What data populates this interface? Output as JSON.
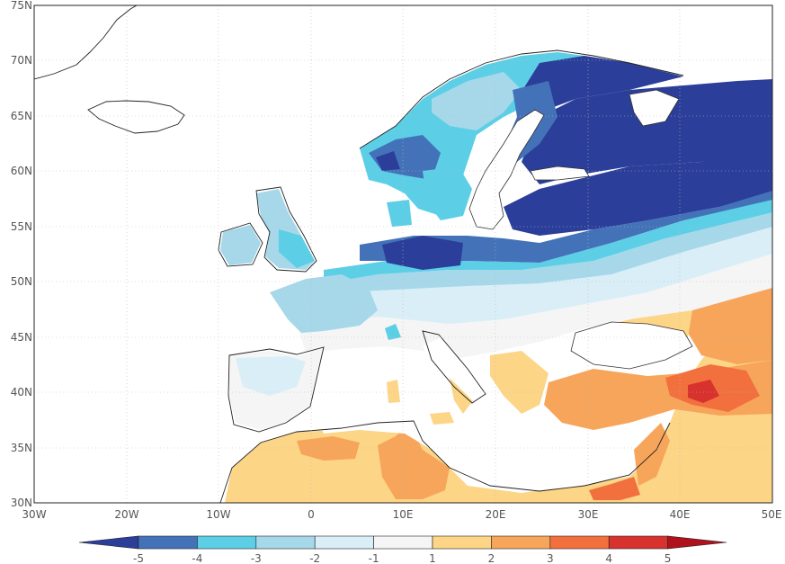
{
  "map": {
    "lat_labels": [
      "75N",
      "70N",
      "65N",
      "60N",
      "55N",
      "50N",
      "45N",
      "40N",
      "35N",
      "30N"
    ],
    "lon_labels": [
      "30W",
      "20W",
      "10W",
      "0",
      "10E",
      "20E",
      "30E",
      "40E",
      "50E"
    ],
    "extent": {
      "lon_min": -30,
      "lon_max": 50,
      "lat_min": 30,
      "lat_max": 75
    },
    "gridlines": true
  },
  "colorbar": {
    "labels": [
      "-5",
      "-4",
      "-3",
      "-2",
      "-1",
      "1",
      "2",
      "3",
      "4",
      "5"
    ],
    "colors": [
      "#2b3f9a",
      "#4472b8",
      "#5ccfe6",
      "#a6d8ea",
      "#d9eef6",
      "#f5f5f5",
      "#fcd586",
      "#f7a55a",
      "#f2703d",
      "#d7322e",
      "#b0131c"
    ],
    "extends": "both"
  },
  "chart_data": {
    "type": "heatmap",
    "title": "",
    "region": "Europe / Mediterranean",
    "value_bins": [
      -5,
      -4,
      -3,
      -2,
      -1,
      1,
      2,
      3,
      4,
      5
    ],
    "regions": [
      {
        "name": "Russia / Baltic / Belarus",
        "value": -5
      },
      {
        "name": "Northern Poland / Germany",
        "value": -5
      },
      {
        "name": "Northern Sweden / Finland interior",
        "value": -5
      },
      {
        "name": "Central Europe band",
        "value": -4
      },
      {
        "name": "Scandinavia coast",
        "value": -3
      },
      {
        "name": "British Isles",
        "value": -2.5
      },
      {
        "name": "France",
        "value": -2
      },
      {
        "name": "Iberia / Italy",
        "value": 0
      },
      {
        "name": "Black Sea coast",
        "value": 2
      },
      {
        "name": "Turkey / Anatolia",
        "value": 3
      },
      {
        "name": "Eastern Turkey",
        "value": 4
      },
      {
        "name": "North Africa",
        "value": 2.5
      },
      {
        "name": "Egypt coast",
        "value": 3.5
      }
    ]
  }
}
